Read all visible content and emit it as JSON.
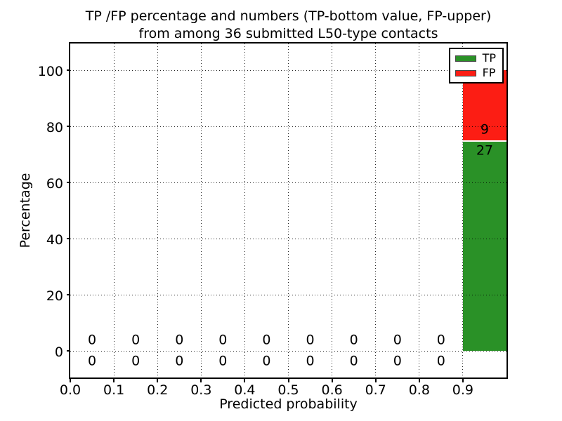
{
  "title": {
    "line1": "TP /FP percentage and numbers (TP-bottom value, FP-upper)",
    "line2": "from among 36 submitted L50-type contacts"
  },
  "axes": {
    "x_label": "Predicted probability",
    "y_label": "Percentage"
  },
  "legend": {
    "items": [
      {
        "label": "TP",
        "color": "#2a9127"
      },
      {
        "label": "FP",
        "color": "#fc1d14"
      }
    ]
  },
  "chart_data": {
    "type": "bar",
    "stacked": true,
    "title": "TP /FP percentage and numbers (TP-bottom value, FP-upper) from among 36 submitted L50-type contacts",
    "xlabel": "Predicted probability",
    "ylabel": "Percentage",
    "xlim": [
      0.0,
      1.0
    ],
    "ylim": [
      -10,
      110
    ],
    "grid": "dotted",
    "legend_position": "upper right",
    "total_contacts": 36,
    "x_ticks": [
      "0.0",
      "0.1",
      "0.2",
      "0.3",
      "0.4",
      "0.5",
      "0.6",
      "0.7",
      "0.8",
      "0.9"
    ],
    "y_ticks": [
      "0",
      "20",
      "40",
      "60",
      "80",
      "100"
    ],
    "bin_width": 0.1,
    "bins": [
      {
        "range": "0.0-0.1",
        "tp_count": 0,
        "fp_count": 0,
        "tp_pct": 0,
        "fp_pct": 0
      },
      {
        "range": "0.1-0.2",
        "tp_count": 0,
        "fp_count": 0,
        "tp_pct": 0,
        "fp_pct": 0
      },
      {
        "range": "0.2-0.3",
        "tp_count": 0,
        "fp_count": 0,
        "tp_pct": 0,
        "fp_pct": 0
      },
      {
        "range": "0.3-0.4",
        "tp_count": 0,
        "fp_count": 0,
        "tp_pct": 0,
        "fp_pct": 0
      },
      {
        "range": "0.4-0.5",
        "tp_count": 0,
        "fp_count": 0,
        "tp_pct": 0,
        "fp_pct": 0
      },
      {
        "range": "0.5-0.6",
        "tp_count": 0,
        "fp_count": 0,
        "tp_pct": 0,
        "fp_pct": 0
      },
      {
        "range": "0.6-0.7",
        "tp_count": 0,
        "fp_count": 0,
        "tp_pct": 0,
        "fp_pct": 0
      },
      {
        "range": "0.7-0.8",
        "tp_count": 0,
        "fp_count": 0,
        "tp_pct": 0,
        "fp_pct": 0
      },
      {
        "range": "0.8-0.9",
        "tp_count": 0,
        "fp_count": 0,
        "tp_pct": 0,
        "fp_pct": 0
      },
      {
        "range": "0.9-1.0",
        "tp_count": 27,
        "fp_count": 9,
        "tp_pct": 75,
        "fp_pct": 25
      }
    ],
    "series": [
      {
        "name": "TP",
        "color": "#2a9127",
        "counts": [
          0,
          0,
          0,
          0,
          0,
          0,
          0,
          0,
          0,
          27
        ],
        "values_pct": [
          0,
          0,
          0,
          0,
          0,
          0,
          0,
          0,
          0,
          75
        ]
      },
      {
        "name": "FP",
        "color": "#fc1d14",
        "counts": [
          0,
          0,
          0,
          0,
          0,
          0,
          0,
          0,
          0,
          9
        ],
        "values_pct": [
          0,
          0,
          0,
          0,
          0,
          0,
          0,
          0,
          0,
          25
        ]
      }
    ]
  }
}
